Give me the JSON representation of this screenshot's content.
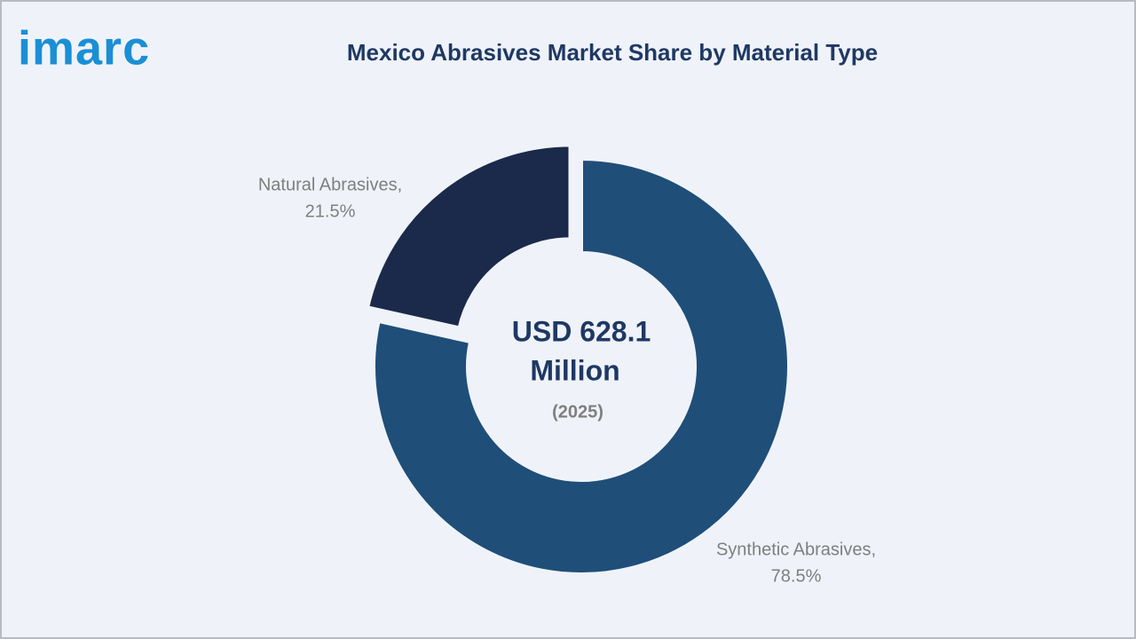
{
  "logo": "imarc",
  "chart_data": {
    "type": "pie",
    "donut": true,
    "title": "Mexico Abrasives Market Share by Material Type",
    "categories": [
      "Synthetic Abrasives,",
      "Natural Abrasives,"
    ],
    "values": [
      78.5,
      21.5
    ],
    "value_labels": [
      "78.5%",
      "21.5%"
    ],
    "colors": [
      "#1f4e79",
      "#1b2a4a"
    ],
    "exploded": [
      false,
      true
    ],
    "center_text": [
      "USD 628.1",
      "Million"
    ],
    "center_subtext": "(2025)"
  }
}
